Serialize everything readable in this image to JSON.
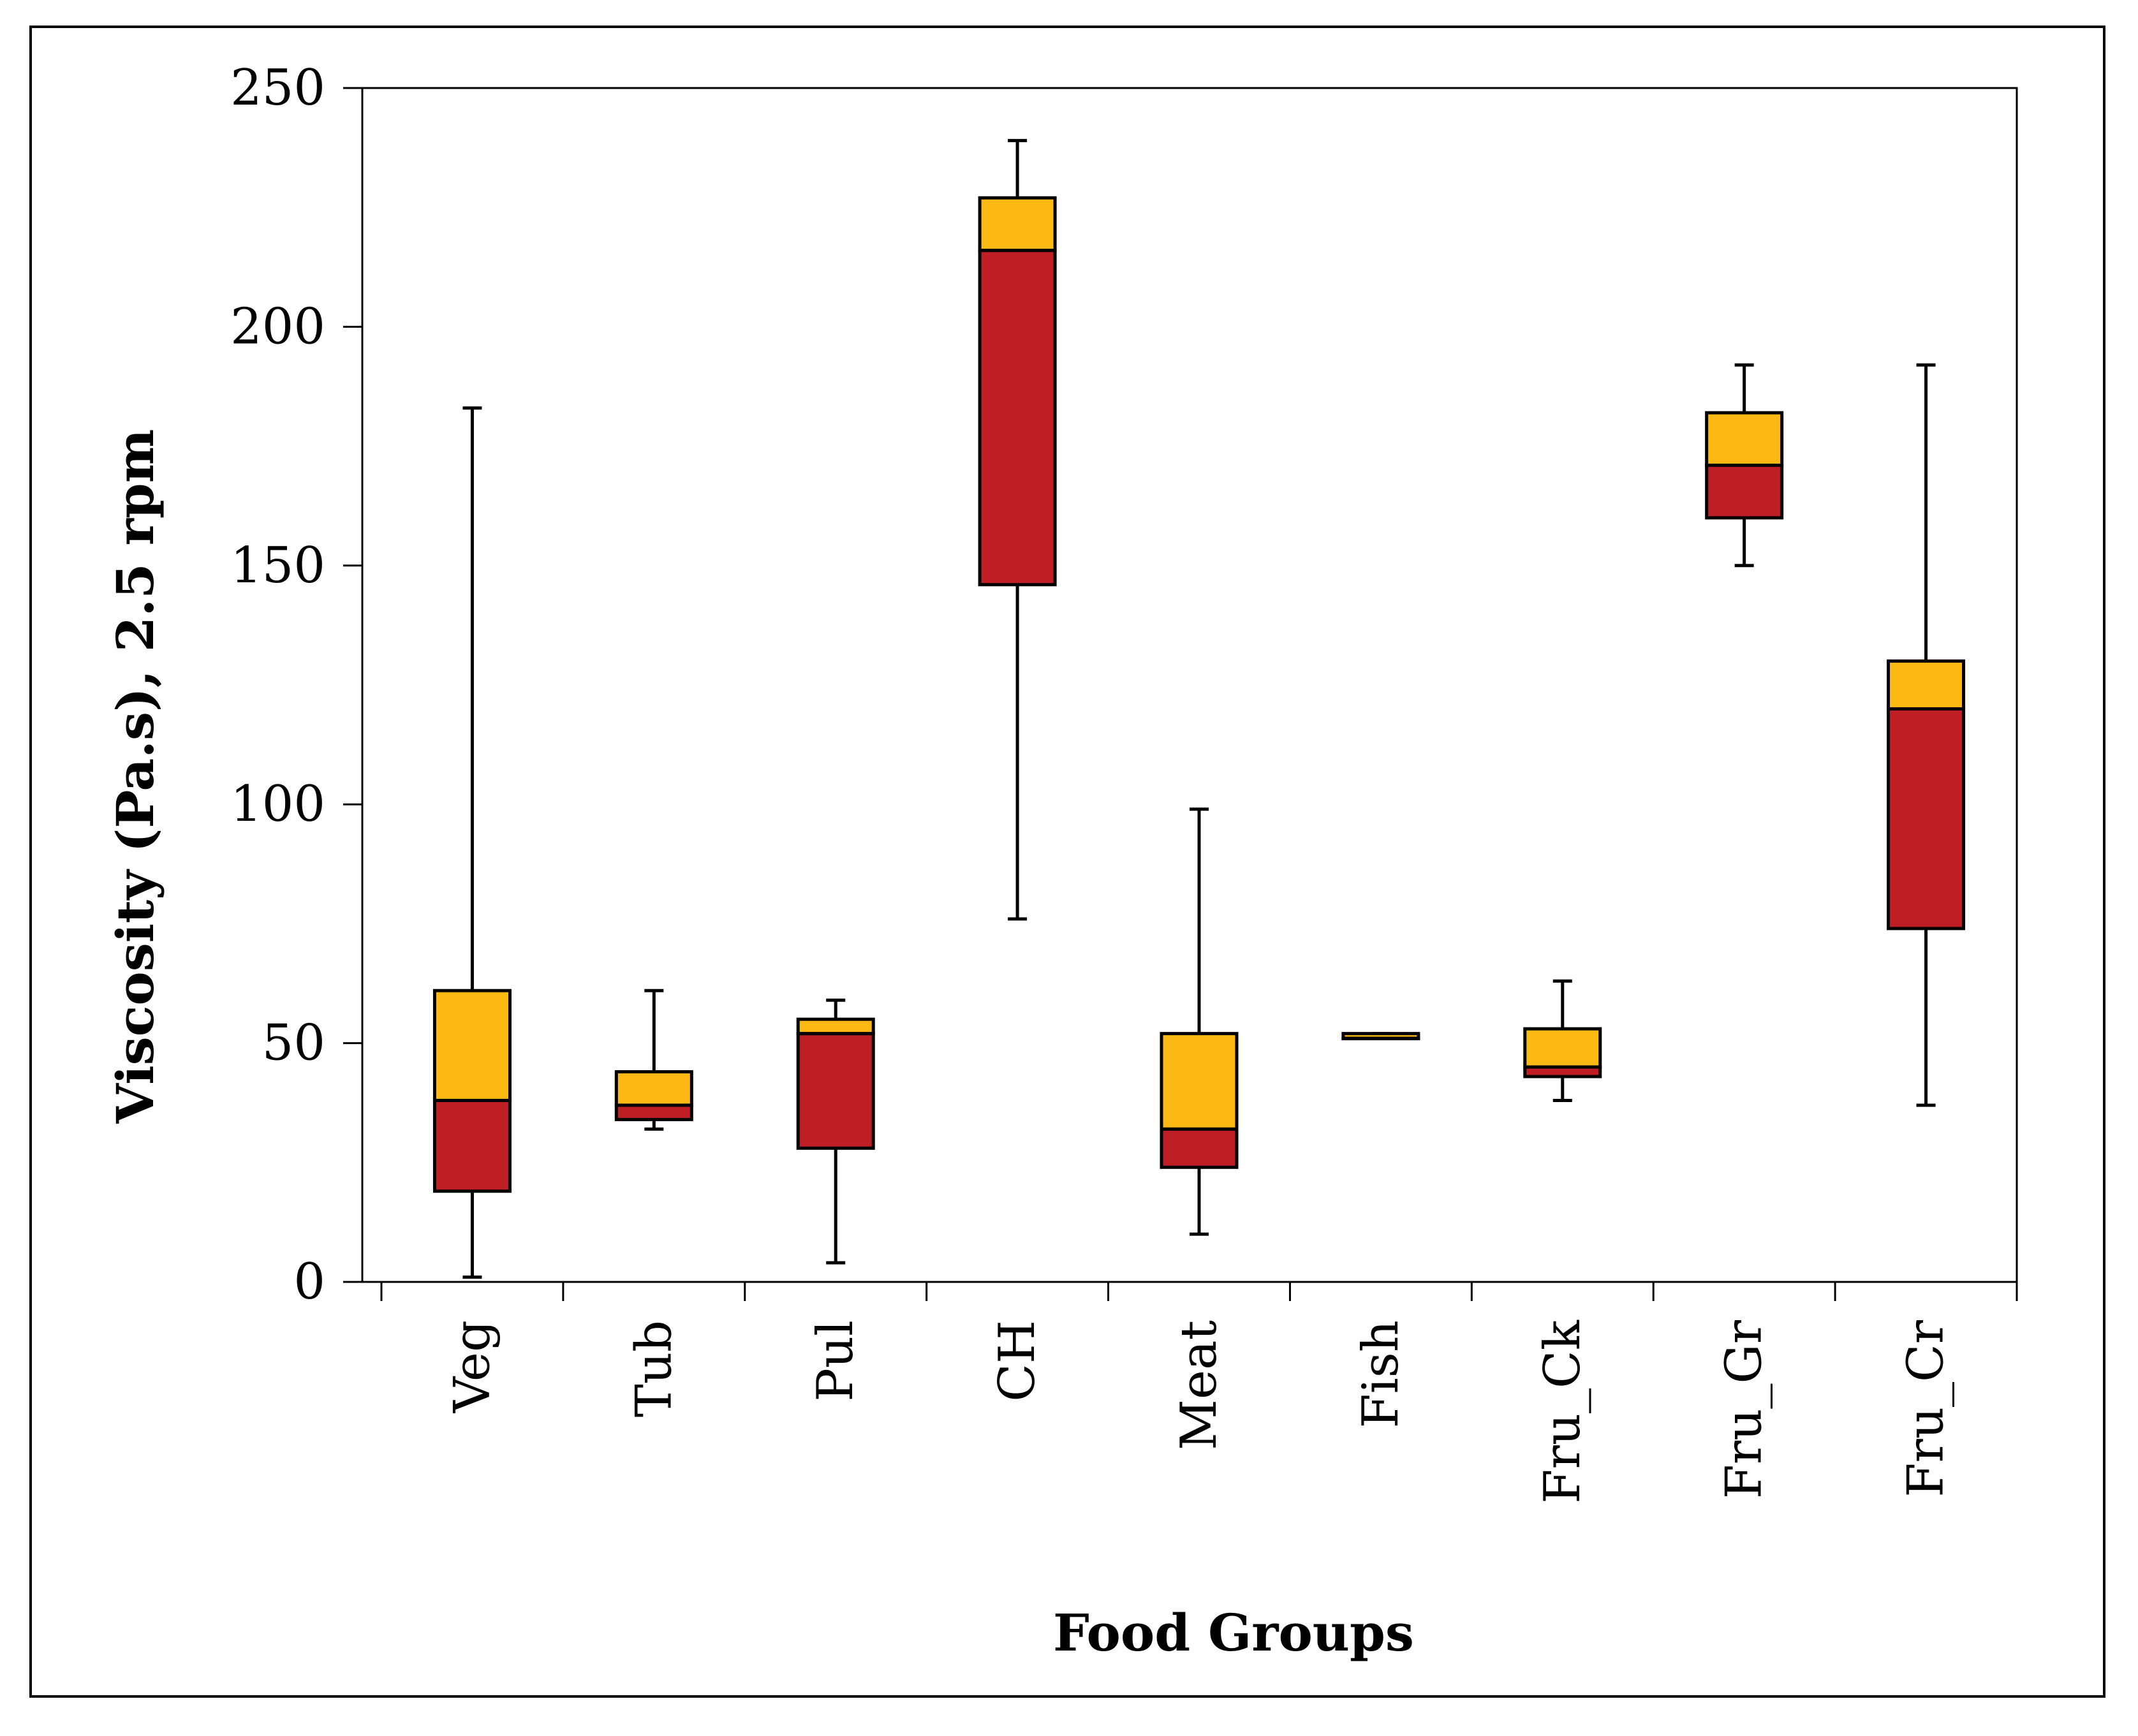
{
  "chart_data": {
    "type": "box",
    "title": "",
    "xlabel": "Food Groups",
    "ylabel": "Viscosity (Pa.s), 2.5 rpm",
    "ylim": [
      0,
      250
    ],
    "yticks": [
      0,
      50,
      100,
      150,
      200,
      250
    ],
    "categories": [
      "Veg",
      "Tub",
      "Pul",
      "CH",
      "Meat",
      "Fish",
      "Fru_Ck",
      "Fru_Gr",
      "Fru_Cr"
    ],
    "boxes": [
      {
        "category": "Veg",
        "min": 1,
        "q1": 19,
        "median": 38,
        "q3": 61,
        "max": 183
      },
      {
        "category": "Tub",
        "min": 32,
        "q1": 34,
        "median": 37,
        "q3": 44,
        "max": 61
      },
      {
        "category": "Pul",
        "min": 4,
        "q1": 28,
        "median": 52,
        "q3": 55,
        "max": 59
      },
      {
        "category": "CH",
        "min": 76,
        "q1": 146,
        "median": 216,
        "q3": 227,
        "max": 239
      },
      {
        "category": "Meat",
        "min": 10,
        "q1": 24,
        "median": 32,
        "q3": 52,
        "max": 99
      },
      {
        "category": "Fish",
        "min": 51,
        "q1": 51,
        "median": 51,
        "q3": 52,
        "max": 52
      },
      {
        "category": "Fru_Ck",
        "min": 38,
        "q1": 43,
        "median": 45,
        "q3": 53,
        "max": 63
      },
      {
        "category": "Fru_Gr",
        "min": 150,
        "q1": 160,
        "median": 171,
        "q3": 182,
        "max": 192
      },
      {
        "category": "Fru_Cr",
        "min": 37,
        "q1": 74,
        "median": 120,
        "q3": 130,
        "max": 192
      }
    ],
    "colors": {
      "lower_box": "#bf1e24",
      "upper_box": "#fdb913",
      "stroke": "#000000"
    },
    "grid": false,
    "legend": "none"
  }
}
